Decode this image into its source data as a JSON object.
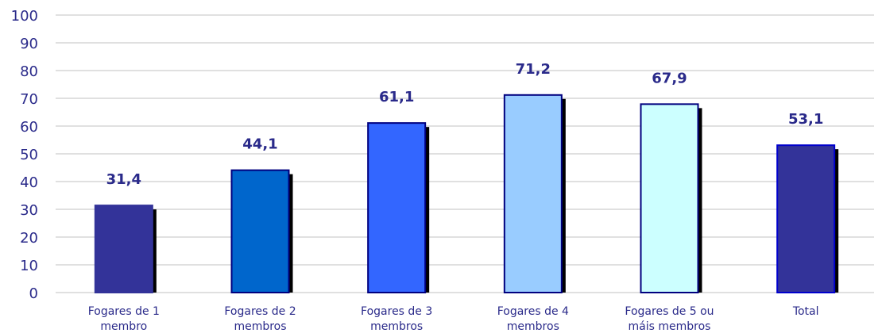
{
  "chart_data": {
    "type": "bar",
    "title": "",
    "xlabel": "",
    "ylabel": "",
    "ylim": [
      0,
      100
    ],
    "yticks": [
      "0",
      "10",
      "20",
      "30",
      "40",
      "50",
      "60",
      "70",
      "80",
      "90",
      "100"
    ],
    "grid": true,
    "legend": "none",
    "categories": [
      [
        "Fogares de 1",
        "membro"
      ],
      [
        "Fogares de 2",
        "membros"
      ],
      [
        "Fogares de 3",
        "membros"
      ],
      [
        "Fogares de 4",
        "membros"
      ],
      [
        "Fogares de 5 ou",
        "máis membros"
      ],
      [
        "Total"
      ]
    ],
    "values": [
      31.4,
      44.1,
      61.1,
      71.2,
      67.9,
      53.1
    ],
    "value_labels": [
      "31,4",
      "44,1",
      "61,1",
      "71,2",
      "67,9",
      "53,1"
    ],
    "bar_colors": [
      "#333399",
      "#0066cc",
      "#3366ff",
      "#99ccff",
      "#ccffff",
      "#333399"
    ],
    "bar_borders": [
      "#333399",
      "#00007f",
      "#00007f",
      "#00007f",
      "#00007f",
      "#0000cc"
    ],
    "shadow_color": "#000000",
    "grid_color": "#c0c0c0",
    "text_color": "#2a2a8a"
  }
}
